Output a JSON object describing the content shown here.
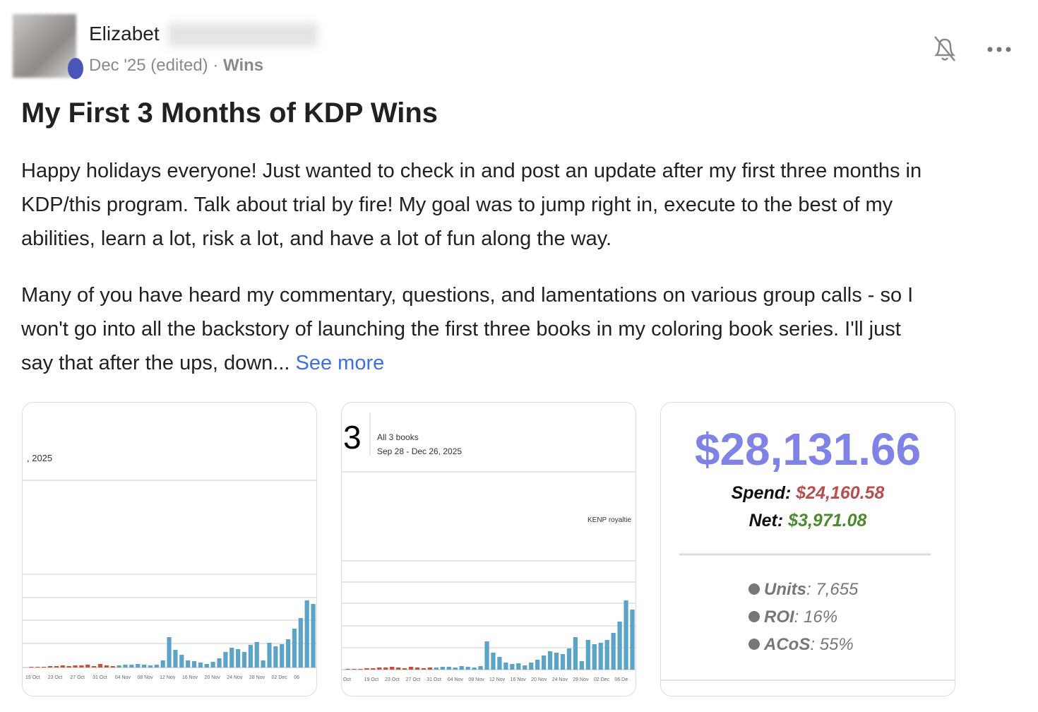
{
  "post": {
    "author": "Elizabet",
    "meta": "Dec '25 (edited)",
    "separator": "·",
    "category": "Wins",
    "title": "My First 3 Months of KDP Wins",
    "paragraphs": [
      [
        "Happy holidays everyone! Just wanted to check in and post an update after my first three months in",
        "KDP/this program. Talk about trial by fire! My goal was to jump right in, execute to the best of my",
        "abilities, learn a lot, risk a lot, and have a lot of fun along the way."
      ],
      [
        "Many of you have heard my commentary, questions, and lamentations on various group calls - so I",
        "won't go into all the backstory of launching the first three books in my coloring book series. I'll just",
        "say that after the ups, down..."
      ]
    ],
    "see_more": "See more"
  },
  "images": [
    {
      "date": ", 2025",
      "x_labels": [
        "19 Oct",
        "23 Oct",
        "27 Oct",
        "31 Oct",
        "04 Nov",
        "08 Nov",
        "12 Nov",
        "16 Nov",
        "20 Nov",
        "24 Nov",
        "28 Nov",
        "02 Dec",
        "06"
      ],
      "series": [
        {
          "color": "#c9503f",
          "values": [
            1,
            1,
            1,
            2,
            2,
            3,
            2,
            3,
            3,
            4,
            2,
            5,
            3,
            2,
            null,
            null,
            null,
            null,
            null,
            null,
            null,
            null,
            null,
            null,
            null,
            null,
            null,
            null,
            null,
            null,
            null,
            null,
            null,
            null,
            null,
            null,
            null,
            null,
            null,
            null,
            null,
            null,
            null,
            null,
            null,
            null
          ]
        },
        {
          "color": "#5ba3c7",
          "values": [
            null,
            null,
            null,
            null,
            null,
            null,
            null,
            null,
            null,
            null,
            null,
            null,
            null,
            null,
            3,
            4,
            4,
            5,
            4,
            3,
            4,
            10,
            43,
            25,
            18,
            10,
            9,
            7,
            5,
            8,
            13,
            22,
            28,
            26,
            22,
            32,
            36,
            10,
            35,
            30,
            33,
            40,
            55,
            70,
            95,
            90
          ]
        }
      ]
    },
    {
      "number": "3",
      "label": "All 3 books",
      "range": "Sep 28 - Dec 26, 2025",
      "legend": "KENP royaltie",
      "x_labels": [
        "Oct",
        "19 Oct",
        "23 Oct",
        "27 Oct",
        "31 Oct",
        "04 Nov",
        "08 Nov",
        "12 Nov",
        "16 Nov",
        "20 Nov",
        "24 Nov",
        "28 Nov",
        "02 Dec",
        "06 De"
      ],
      "series": [
        {
          "color": "#c9503f",
          "values": [
            1,
            1,
            1,
            2,
            2,
            3,
            3,
            4,
            3,
            2,
            4,
            3,
            2,
            3,
            null,
            null,
            null,
            null,
            null,
            null,
            null,
            null,
            null,
            null,
            null,
            null,
            null,
            null,
            null,
            null,
            null,
            null,
            null,
            null,
            null,
            null,
            null,
            null,
            null,
            null,
            null,
            null,
            null,
            null,
            null,
            null
          ]
        },
        {
          "color": "#5ba3c7",
          "values": [
            null,
            null,
            null,
            null,
            null,
            null,
            null,
            null,
            null,
            null,
            null,
            null,
            null,
            null,
            3,
            4,
            4,
            3,
            5,
            4,
            3,
            5,
            40,
            24,
            18,
            10,
            8,
            9,
            6,
            10,
            14,
            20,
            26,
            24,
            22,
            30,
            46,
            12,
            42,
            36,
            38,
            42,
            52,
            68,
            98,
            85
          ]
        }
      ]
    },
    {
      "total": "$28,131.66",
      "spend_label": "Spend",
      "spend": "$24,160.58",
      "net_label": "Net",
      "net": "$3,971.08",
      "stats": [
        {
          "label": "Units",
          "value": "7,655"
        },
        {
          "label": "ROI",
          "value": "16%"
        },
        {
          "label": "ACoS",
          "value": "55%"
        }
      ]
    }
  ]
}
